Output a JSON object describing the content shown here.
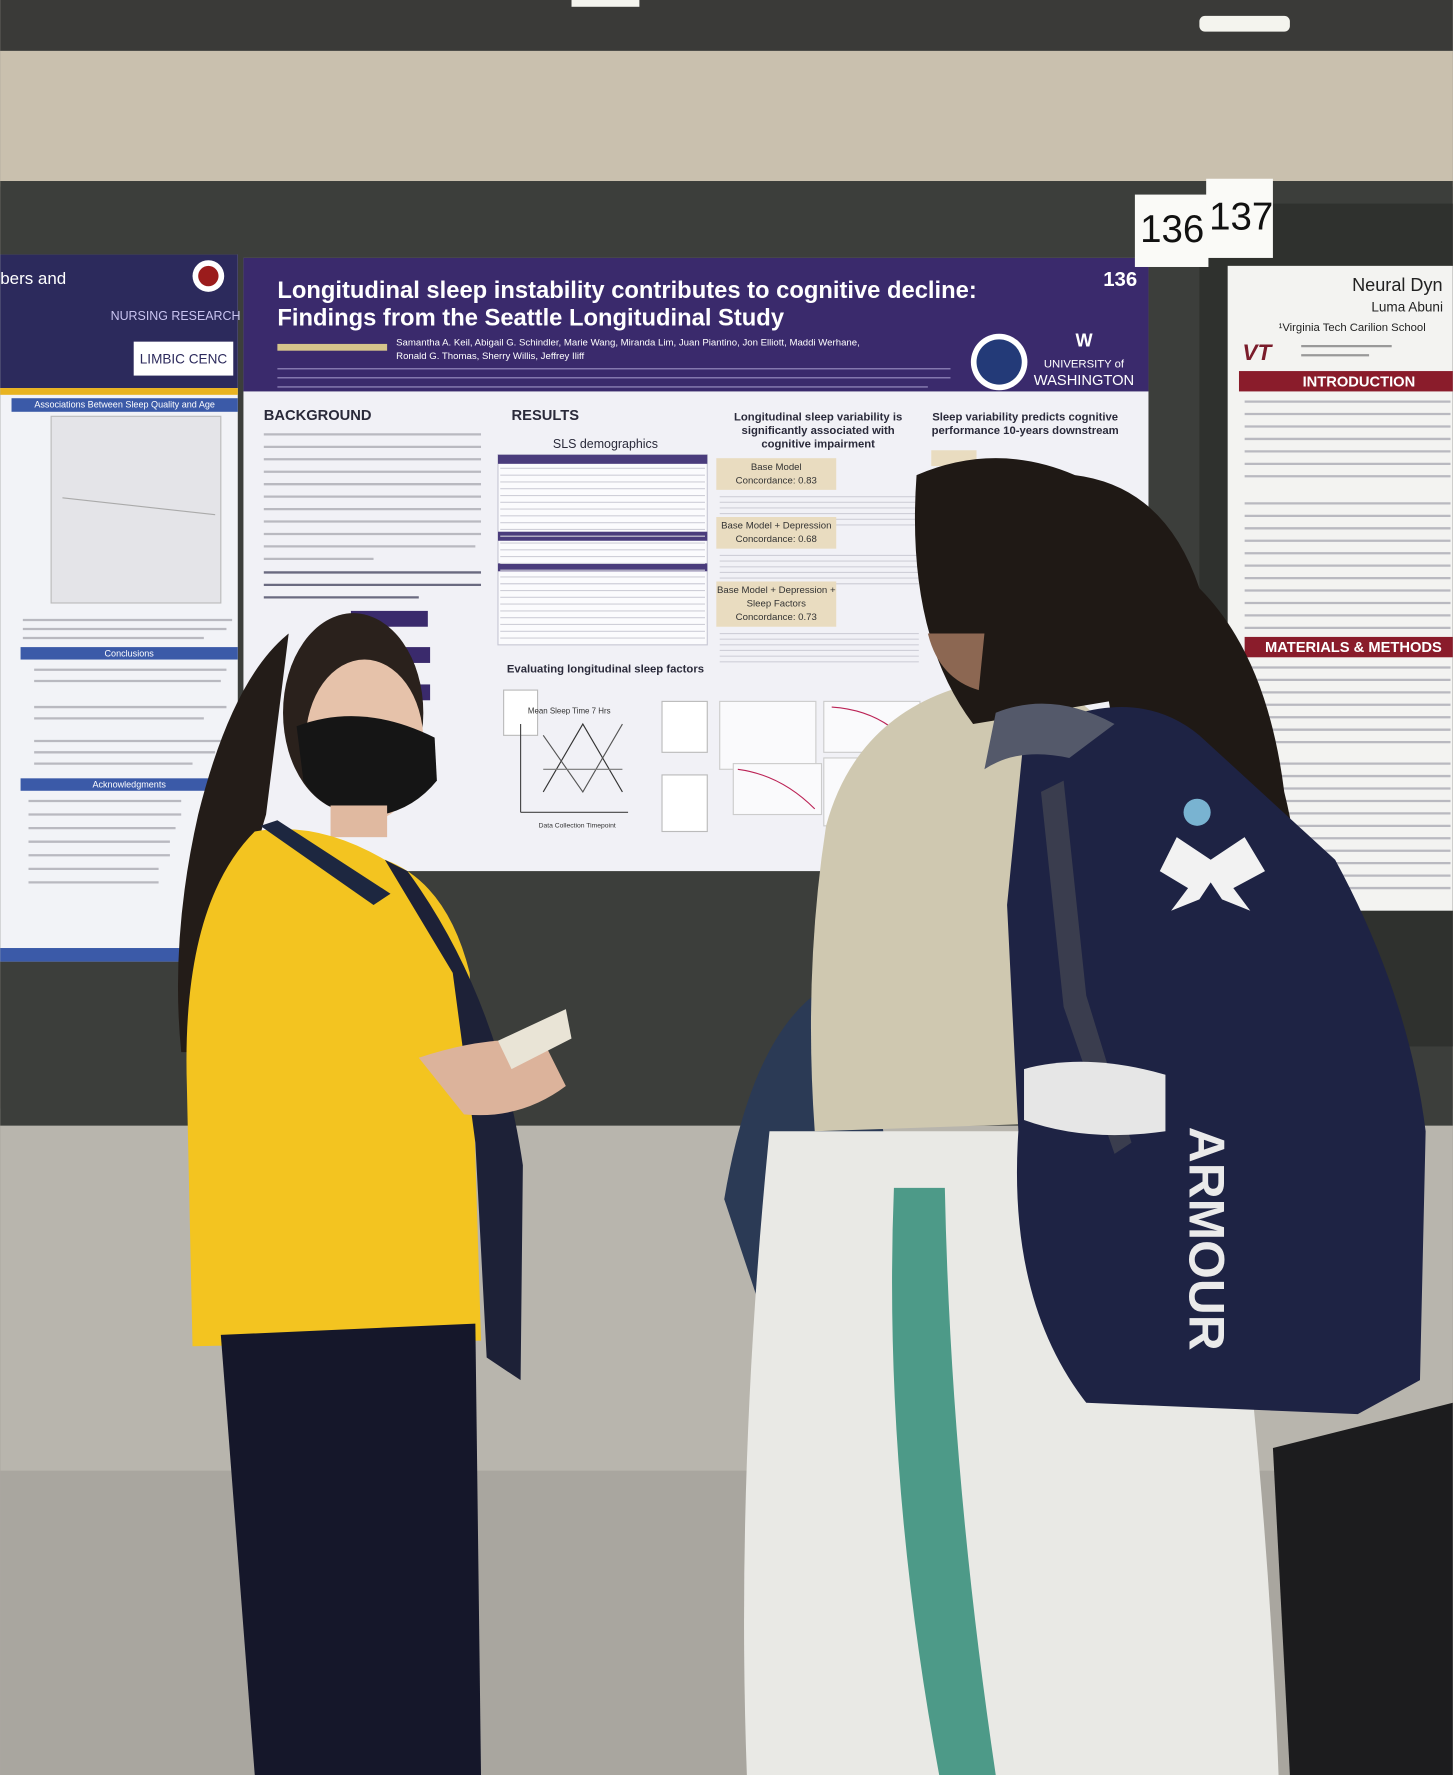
{
  "left_poster": {
    "title_fragment": "bers and",
    "logo_nursing": "NURSING RESEARCH",
    "logo_limbic": "LIMBIC CENC",
    "plot_heading": "Associations Between Sleep Quality and Age",
    "conclusions_heading": "Conclusions",
    "acknowledgments_heading": "Acknowledgments"
  },
  "main_poster": {
    "title_lines": [
      "Longitudinal sleep instability contributes to cognitive decline:",
      "Findings from the Seattle Longitudinal Study"
    ],
    "number": "136",
    "author_lines": [
      "Samantha A. Keil, Abigail G. Schindler, Marie Wang, Miranda Lim, Juan Piantino, Jon Elliott, Maddi Werhane,",
      "Ronald G. Thomas, Sherry Willis, Jeffrey Iliff"
    ],
    "university_logo": [
      "W",
      "UNIVERSITY of",
      "WASHINGTON"
    ],
    "background_heading": "BACKGROUND",
    "results_heading": "RESULTS",
    "demographics_heading": "SLS demographics",
    "middle_heading_lines": [
      "Longitudinal sleep variability is",
      "significantly associated with",
      "cognitive impairment"
    ],
    "right_heading_lines": [
      "Sleep variability predicts cognitive",
      "performance 10-years downstream"
    ],
    "models": [
      {
        "name_lines": [
          "Base Model"
        ],
        "concordance": "Concordance: 0.83"
      },
      {
        "name_lines": [
          "Base Model + Depression"
        ],
        "concordance": "Concordance: 0.68"
      },
      {
        "name_lines": [
          "Base Model + Depression +",
          "Sleep Factors"
        ],
        "concordance": "Concordance: 0.73"
      }
    ],
    "sleep_factors_heading": "Evaluating longitudinal sleep factors",
    "chart_label": "Mean Sleep Time 7 Hrs",
    "chart_x_label": "Data Collection Timepoint"
  },
  "right_poster": {
    "title_fragment": "Neural Dyn",
    "author_fragment": "Luma Abuni",
    "affiliation_fragment": "¹Virginia Tech Carilion School",
    "logo": "VT",
    "introduction_heading": "INTRODUCTION",
    "methods_heading": "MATERIALS & METHODS"
  },
  "booth_numbers": [
    "136",
    "137"
  ],
  "backpack_text": "ARMOUR"
}
